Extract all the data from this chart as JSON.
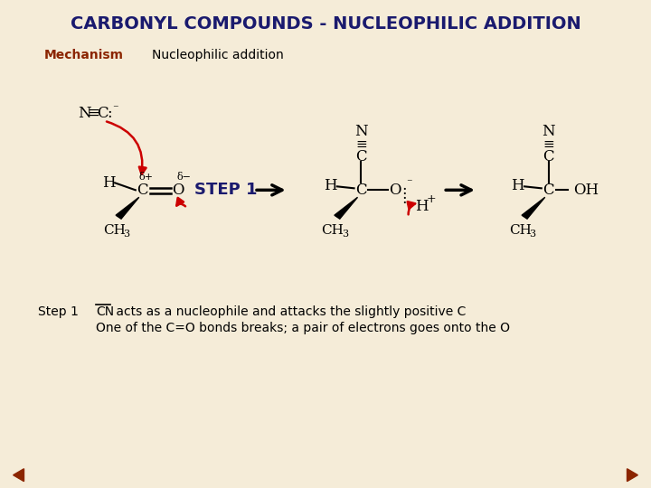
{
  "bg_color": "#f5ecd8",
  "title": "CARBONYL COMPOUNDS - NUCLEOPHILIC ADDITION",
  "title_color": "#1a1a6e",
  "title_fontsize": 14,
  "mechanism_label": "Mechanism",
  "mechanism_color": "#8B2500",
  "nucleophilic_label": "Nucleophilic addition",
  "step_label": "STEP 1",
  "step_color": "#1a1a6e",
  "step1_text_label": "Step 1",
  "step1_line1": " acts as a nucleophile and attacks the slightly positive C",
  "step1_line2": "One of the C=O bonds breaks; a pair of electrons goes onto the O",
  "arrow_color": "#cc0000",
  "nav_arrow_color": "#8B2500"
}
